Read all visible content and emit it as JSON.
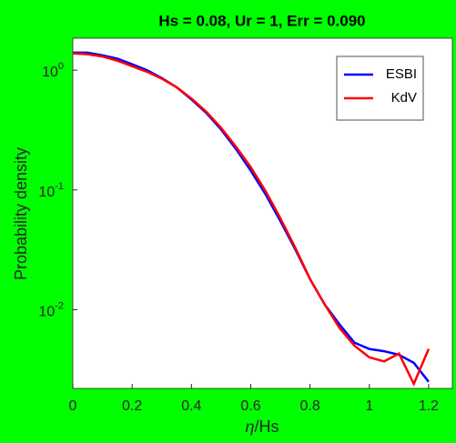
{
  "chart_data": {
    "type": "line",
    "title": "Hs = 0.08, Ur = 1, Err = 0.090",
    "x_label": "η/Hs",
    "y_label": "Probability density",
    "x": [
      0,
      0.05,
      0.1,
      0.15,
      0.2,
      0.25,
      0.3,
      0.35,
      0.4,
      0.45,
      0.5,
      0.55,
      0.6,
      0.65,
      0.7,
      0.75,
      0.8,
      0.85,
      0.9,
      0.95,
      1.0,
      1.05,
      1.1,
      1.15,
      1.2
    ],
    "series": [
      {
        "name": "ESBI",
        "color": "#0000ff",
        "values": [
          1.4,
          1.4,
          1.33,
          1.25,
          1.12,
          1.0,
          0.86,
          0.72,
          0.57,
          0.44,
          0.32,
          0.22,
          0.145,
          0.092,
          0.055,
          0.032,
          0.018,
          0.011,
          0.0075,
          0.0053,
          0.0047,
          0.0045,
          0.0042,
          0.0036,
          0.0025
        ]
      },
      {
        "name": "KdV",
        "color": "#ff0000",
        "values": [
          1.38,
          1.36,
          1.3,
          1.2,
          1.08,
          0.97,
          0.85,
          0.72,
          0.58,
          0.45,
          0.33,
          0.23,
          0.155,
          0.098,
          0.058,
          0.033,
          0.018,
          0.011,
          0.007,
          0.005,
          0.004,
          0.0037,
          0.0043,
          0.0024,
          0.0047
        ]
      }
    ],
    "xlim": [
      0,
      1.28
    ],
    "xticks": [
      0,
      0.2,
      0.4,
      0.6,
      0.8,
      1,
      1.2
    ],
    "ylim": [
      0.0022,
      1.85
    ],
    "y_scale": "log",
    "yticks": [
      {
        "value": 0.01,
        "label": "10^-2"
      },
      {
        "value": 0.1,
        "label": "10^-1"
      },
      {
        "value": 1,
        "label": "10^0"
      }
    ],
    "legend_position": "upper right"
  }
}
